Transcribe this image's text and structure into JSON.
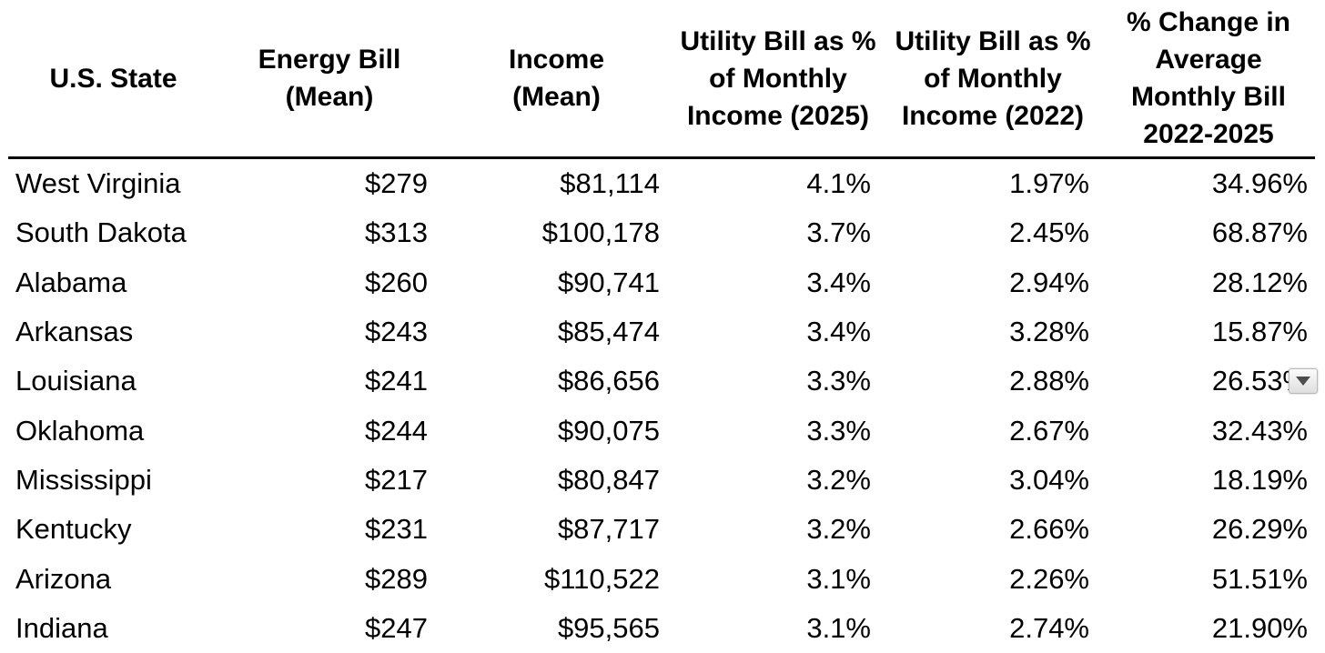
{
  "chart_data": {
    "type": "table",
    "title": "",
    "columns": [
      {
        "id": "state",
        "label": "U.S. State",
        "lines": [
          "U.S. State"
        ],
        "align": "left"
      },
      {
        "id": "energy-bill-mean",
        "label": "Energy Bill (Mean)",
        "lines": [
          "Energy Bill",
          "(Mean)"
        ],
        "align": "right"
      },
      {
        "id": "income-mean",
        "label": "Income (Mean)",
        "lines": [
          "Income",
          "(Mean)"
        ],
        "align": "right"
      },
      {
        "id": "pct-income-2025",
        "label": "Utility Bill as % of Monthly Income (2025)",
        "lines": [
          "Utility Bill as %",
          "of Monthly",
          "Income (2025)"
        ],
        "align": "right"
      },
      {
        "id": "pct-income-2022",
        "label": "Utility Bill as % of Monthly Income (2022)",
        "lines": [
          "Utility Bill as %",
          "of Monthly",
          "Income (2022)"
        ],
        "align": "right"
      },
      {
        "id": "pct-change",
        "label": "% Change in Average Monthly Bill 2022-2025",
        "lines": [
          "% Change in",
          "Average",
          "Monthly Bill",
          "2022-2025"
        ],
        "align": "right"
      }
    ],
    "rows": [
      [
        "West Virginia",
        "$279",
        "$81,114",
        "4.1%",
        "1.97%",
        "34.96%"
      ],
      [
        "South Dakota",
        "$313",
        "$100,178",
        "3.7%",
        "2.45%",
        "68.87%"
      ],
      [
        "Alabama",
        "$260",
        "$90,741",
        "3.4%",
        "2.94%",
        "28.12%"
      ],
      [
        "Arkansas",
        "$243",
        "$85,474",
        "3.4%",
        "3.28%",
        "15.87%"
      ],
      [
        "Louisiana",
        "$241",
        "$86,656",
        "3.3%",
        "2.88%",
        "26.53%"
      ],
      [
        "Oklahoma",
        "$244",
        "$90,075",
        "3.3%",
        "2.67%",
        "32.43%"
      ],
      [
        "Mississippi",
        "$217",
        "$80,847",
        "3.2%",
        "3.04%",
        "18.19%"
      ],
      [
        "Kentucky",
        "$231",
        "$87,717",
        "3.2%",
        "2.66%",
        "26.29%"
      ],
      [
        "Arizona",
        "$289",
        "$110,522",
        "3.1%",
        "2.26%",
        "51.51%"
      ],
      [
        "Indiana",
        "$247",
        "$95,565",
        "3.1%",
        "2.74%",
        "21.90%"
      ]
    ],
    "layout_hints": {
      "grid": "off",
      "header_divider": true,
      "divider_color": "#000000",
      "text_color": "#000000",
      "background_color": "#ffffff"
    }
  },
  "ui": {
    "dropdown": {
      "row_index": 4,
      "column_index": 5,
      "row_state": "Louisiana",
      "icon": "dropdown-arrow-icon",
      "button_bg": "#ededed",
      "arrow_color": "#4d4d4d"
    }
  }
}
